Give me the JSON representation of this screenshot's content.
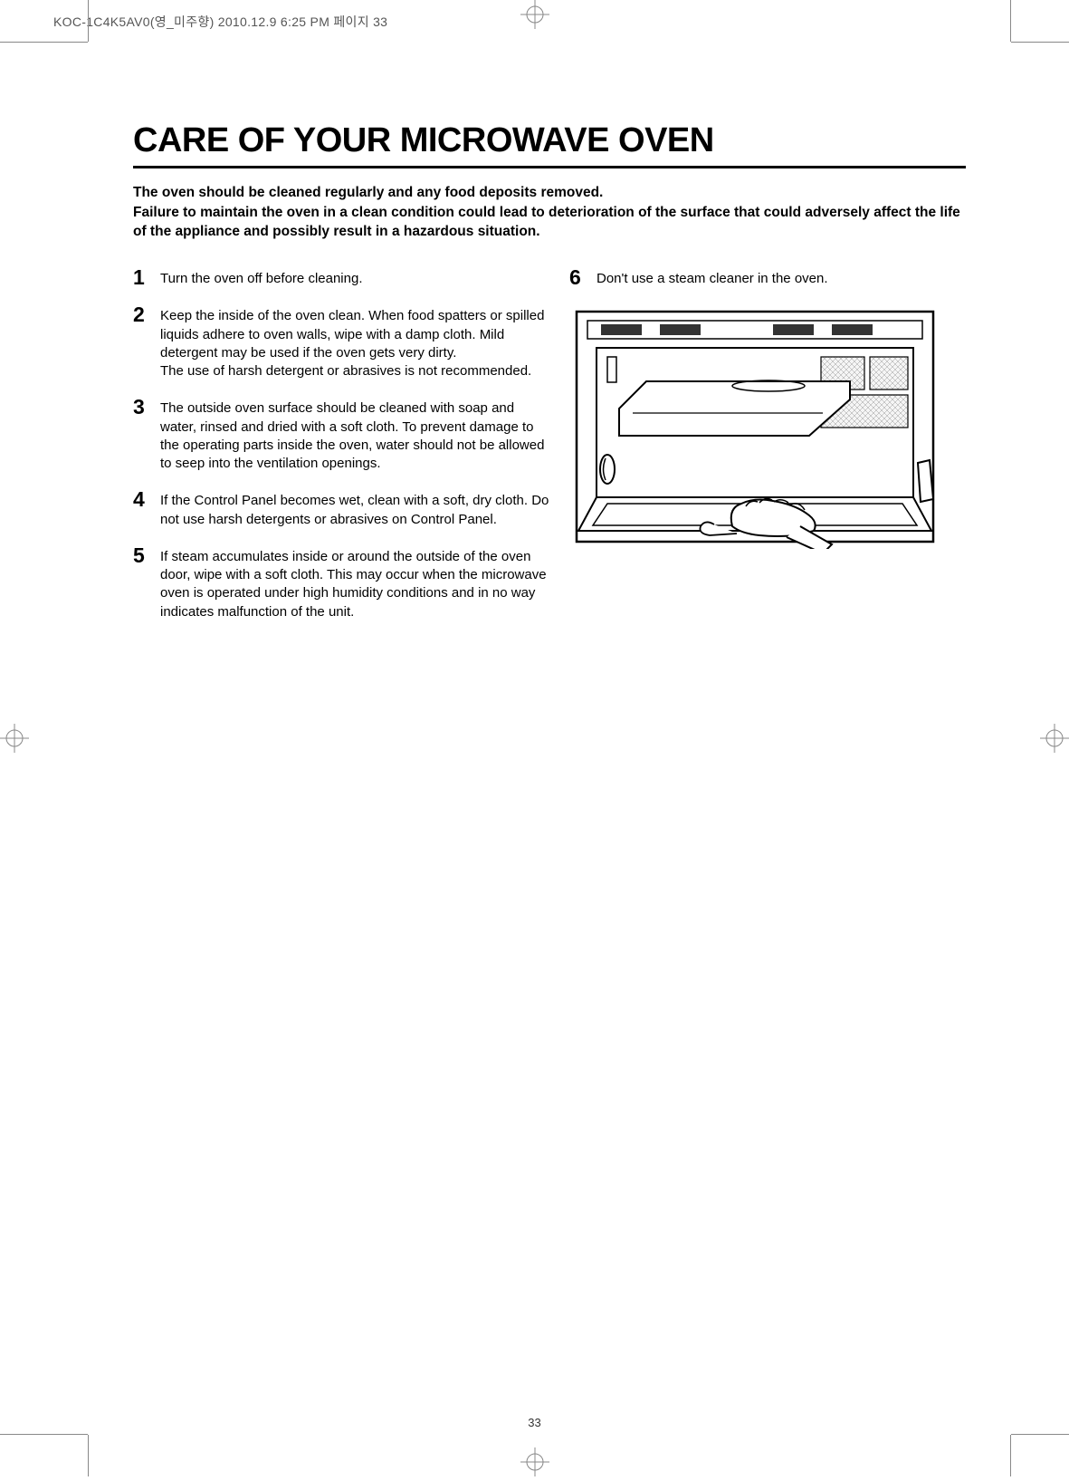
{
  "header": {
    "file_info": "KOC-1C4K5AV0(영_미주향) 2010.12.9 6:25 PM 페이지 33"
  },
  "page": {
    "title": "CARE OF YOUR MICROWAVE OVEN",
    "intro_line1": "The oven should be cleaned regularly and any food  deposits removed.",
    "intro_line2": "Failure to maintain the oven in a clean condition could lead to deterioration of the surface that could adversely affect the life of the appliance and possibly result in a hazardous situation.",
    "number": "33"
  },
  "steps": {
    "s1": {
      "num": "1",
      "text": "Turn the oven off before cleaning."
    },
    "s2": {
      "num": "2",
      "text": "Keep the inside of the oven clean. When food spatters or spilled liquids adhere to oven walls, wipe with a damp cloth. Mild detergent may be used if the oven gets very dirty.\nThe use of harsh detergent or abrasives is not recommended."
    },
    "s3": {
      "num": "3",
      "text": "The outside oven surface should be cleaned with soap and water, rinsed and dried with a soft cloth. To prevent damage to the operating parts inside the oven, water should not be allowed to seep into the ventilation openings."
    },
    "s4": {
      "num": "4",
      "text": "If the Control Panel becomes wet, clean with a soft, dry cloth. Do not use harsh detergents or abrasives on Control Panel."
    },
    "s5": {
      "num": "5",
      "text": "If steam accumulates inside or around the outside of the oven door, wipe with a soft cloth. This may occur when the microwave oven is operated under high humidity conditions and in no way indicates malfunction of the unit."
    },
    "s6": {
      "num": "6",
      "text": "Don't use a steam cleaner in the oven."
    }
  },
  "illustration": {
    "stroke": "#000000",
    "stroke_width": 2,
    "fill": "#ffffff",
    "pattern_fill": "#d0d0d0"
  }
}
